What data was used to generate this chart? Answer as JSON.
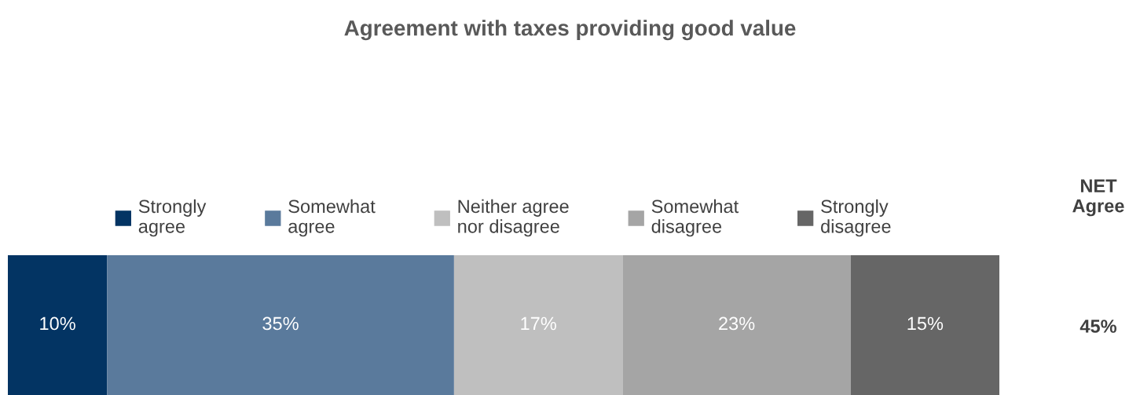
{
  "chart_data": {
    "type": "bar",
    "orientation": "horizontal",
    "stacked": true,
    "title": "Agreement with taxes providing good value",
    "categories": [
      null
    ],
    "series": [
      {
        "name": "Strongly agree",
        "color": "#033463",
        "values": [
          10
        ],
        "value_labels": [
          "10%"
        ]
      },
      {
        "name": "Somewhat agree",
        "color": "#5a7a9c",
        "values": [
          35
        ],
        "value_labels": [
          "35%"
        ]
      },
      {
        "name": "Neither agree nor disagree",
        "color": "#bfbfbf",
        "values": [
          17
        ],
        "value_labels": [
          "17%"
        ]
      },
      {
        "name": "Somewhat disagree",
        "color": "#a5a5a5",
        "values": [
          23
        ],
        "value_labels": [
          "23%"
        ]
      },
      {
        "name": "Strongly disagree",
        "color": "#666666",
        "values": [
          15
        ],
        "value_labels": [
          "15%"
        ]
      }
    ],
    "annotations": [
      "NET Agree",
      "45%"
    ],
    "legend": "top"
  }
}
